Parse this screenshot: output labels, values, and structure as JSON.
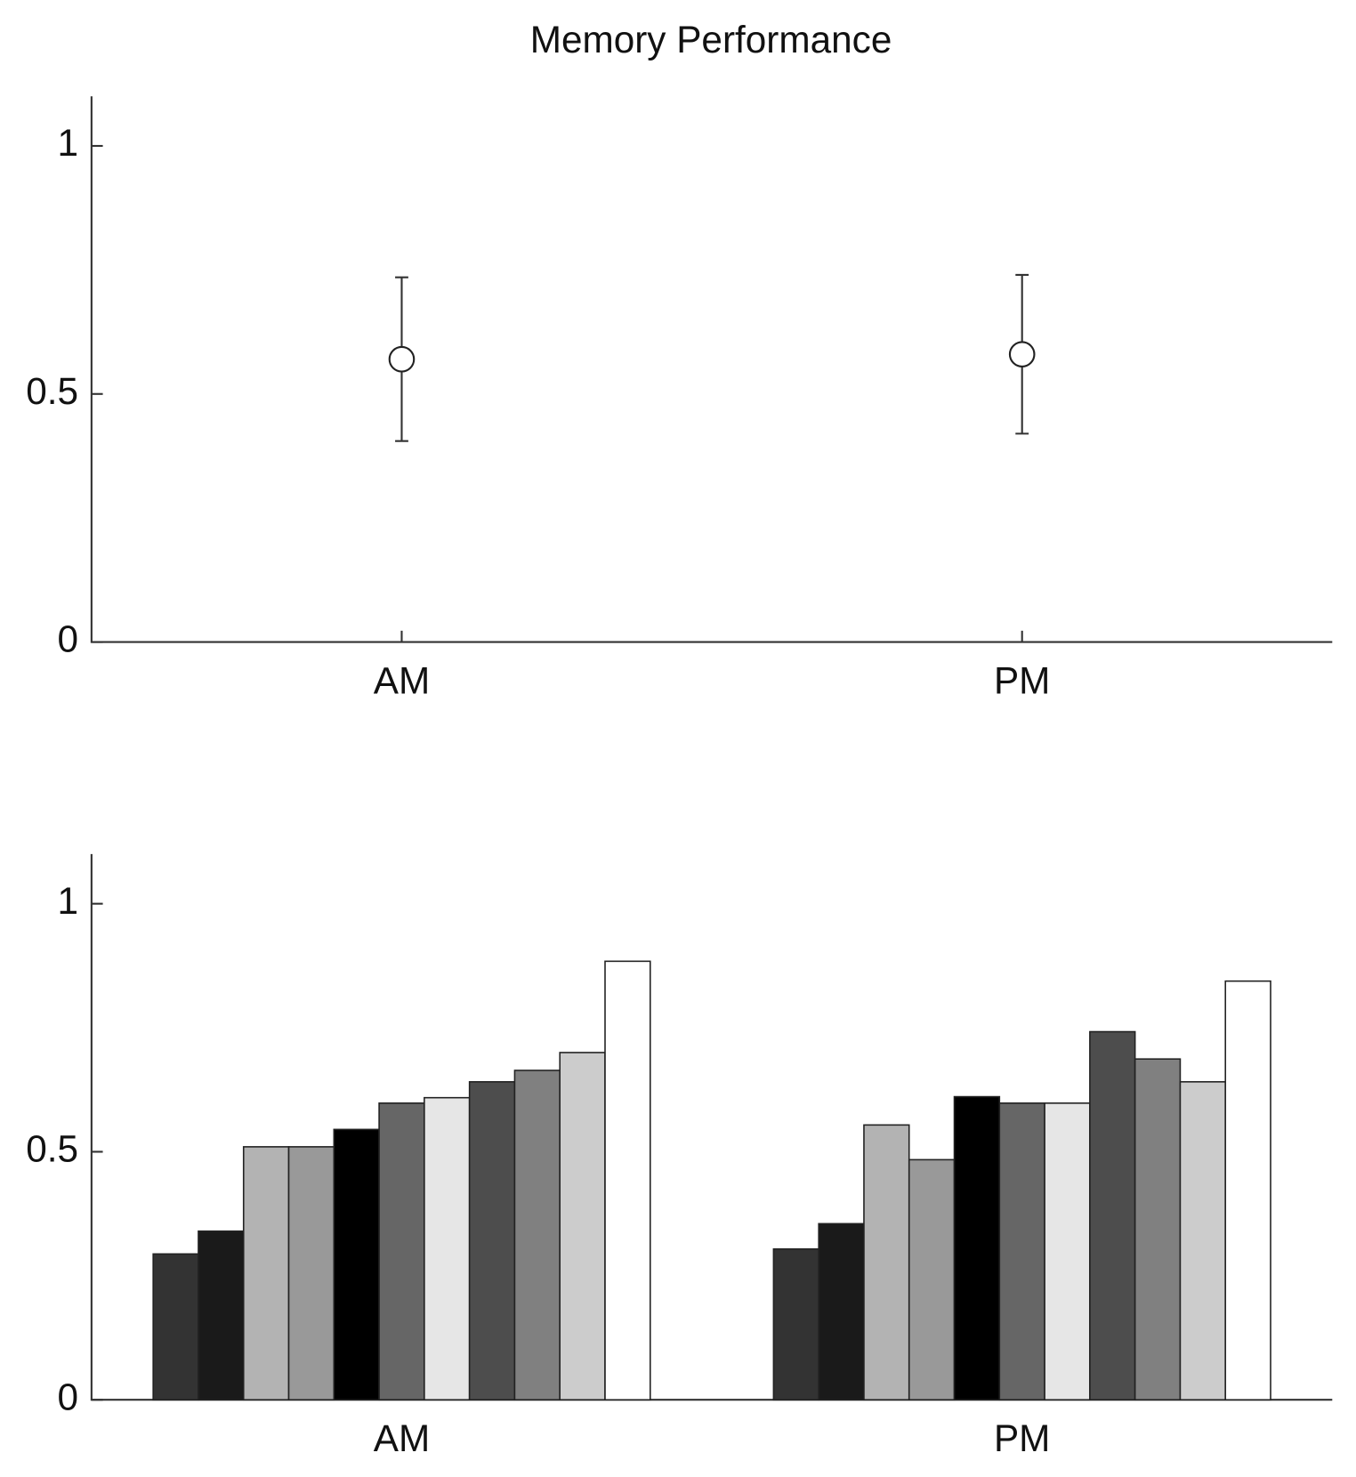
{
  "chart_data": [
    {
      "type": "errorbar",
      "title": "Memory Performance",
      "categories": [
        "AM",
        "PM"
      ],
      "values": [
        0.57,
        0.58
      ],
      "errors": [
        0.165,
        0.16
      ],
      "color": "#222222",
      "ylim": [
        0,
        1.1
      ],
      "yticks": [
        0,
        0.5,
        1
      ]
    },
    {
      "type": "bar",
      "categories": [
        "AM",
        "PM"
      ],
      "series": [
        {
          "color": "#333333",
          "values": [
            0.294,
            0.304
          ]
        },
        {
          "color": "#1a1a1a",
          "values": [
            0.34,
            0.355
          ]
        },
        {
          "color": "#b3b3b3",
          "values": [
            0.51,
            0.554
          ]
        },
        {
          "color": "#999999",
          "values": [
            0.51,
            0.484
          ]
        },
        {
          "color": "#000000",
          "values": [
            0.545,
            0.611
          ]
        },
        {
          "color": "#666666",
          "values": [
            0.598,
            0.598
          ]
        },
        {
          "color": "#e6e6e6",
          "values": [
            0.609,
            0.598
          ]
        },
        {
          "color": "#4d4d4d",
          "values": [
            0.641,
            0.742
          ]
        },
        {
          "color": "#808080",
          "values": [
            0.664,
            0.687
          ]
        },
        {
          "color": "#cccccc",
          "values": [
            0.7,
            0.641
          ]
        },
        {
          "color": "#ffffff",
          "values": [
            0.884,
            0.844
          ]
        }
      ],
      "ylim": [
        0,
        1.1
      ],
      "yticks": [
        0,
        0.5,
        1
      ]
    }
  ]
}
